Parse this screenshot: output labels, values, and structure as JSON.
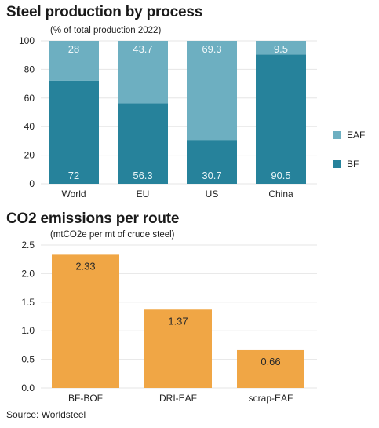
{
  "chart_data": [
    {
      "type": "bar",
      "stacked": true,
      "title": "Steel production by process",
      "subtitle": "(% of total production 2022)",
      "categories": [
        "World",
        "EU",
        "US",
        "China"
      ],
      "series": [
        {
          "name": "BF",
          "values": [
            72,
            56.3,
            30.7,
            90.5
          ],
          "color": "#26829b"
        },
        {
          "name": "EAF",
          "values": [
            28,
            43.7,
            69.3,
            9.5
          ],
          "color": "#6dafc1"
        }
      ],
      "data_labels": {
        "BF": [
          "72",
          "56.3",
          "30.7",
          "90.5"
        ],
        "EAF": [
          "28",
          "43.7",
          "69.3",
          "9.5"
        ]
      },
      "ylim": [
        0,
        100
      ],
      "yticks": [
        "0",
        "20",
        "40",
        "60",
        "80",
        "100"
      ],
      "legend": "right",
      "grid": true
    },
    {
      "type": "bar",
      "title": "CO2 emissions per route",
      "subtitle": "(mtCO2e per mt of crude steel)",
      "categories": [
        "BF-BOF",
        "DRI-EAF",
        "scrap-EAF"
      ],
      "values": [
        2.33,
        1.37,
        0.66
      ],
      "data_labels": [
        "2.33",
        "1.37",
        "0.66"
      ],
      "color": "#f0a645",
      "ylim": [
        0,
        2.5
      ],
      "yticks": [
        "0.0",
        "0.5",
        "1.0",
        "1.5",
        "2.0",
        "2.5"
      ],
      "grid": true
    }
  ],
  "source": "Source: Worldsteel"
}
